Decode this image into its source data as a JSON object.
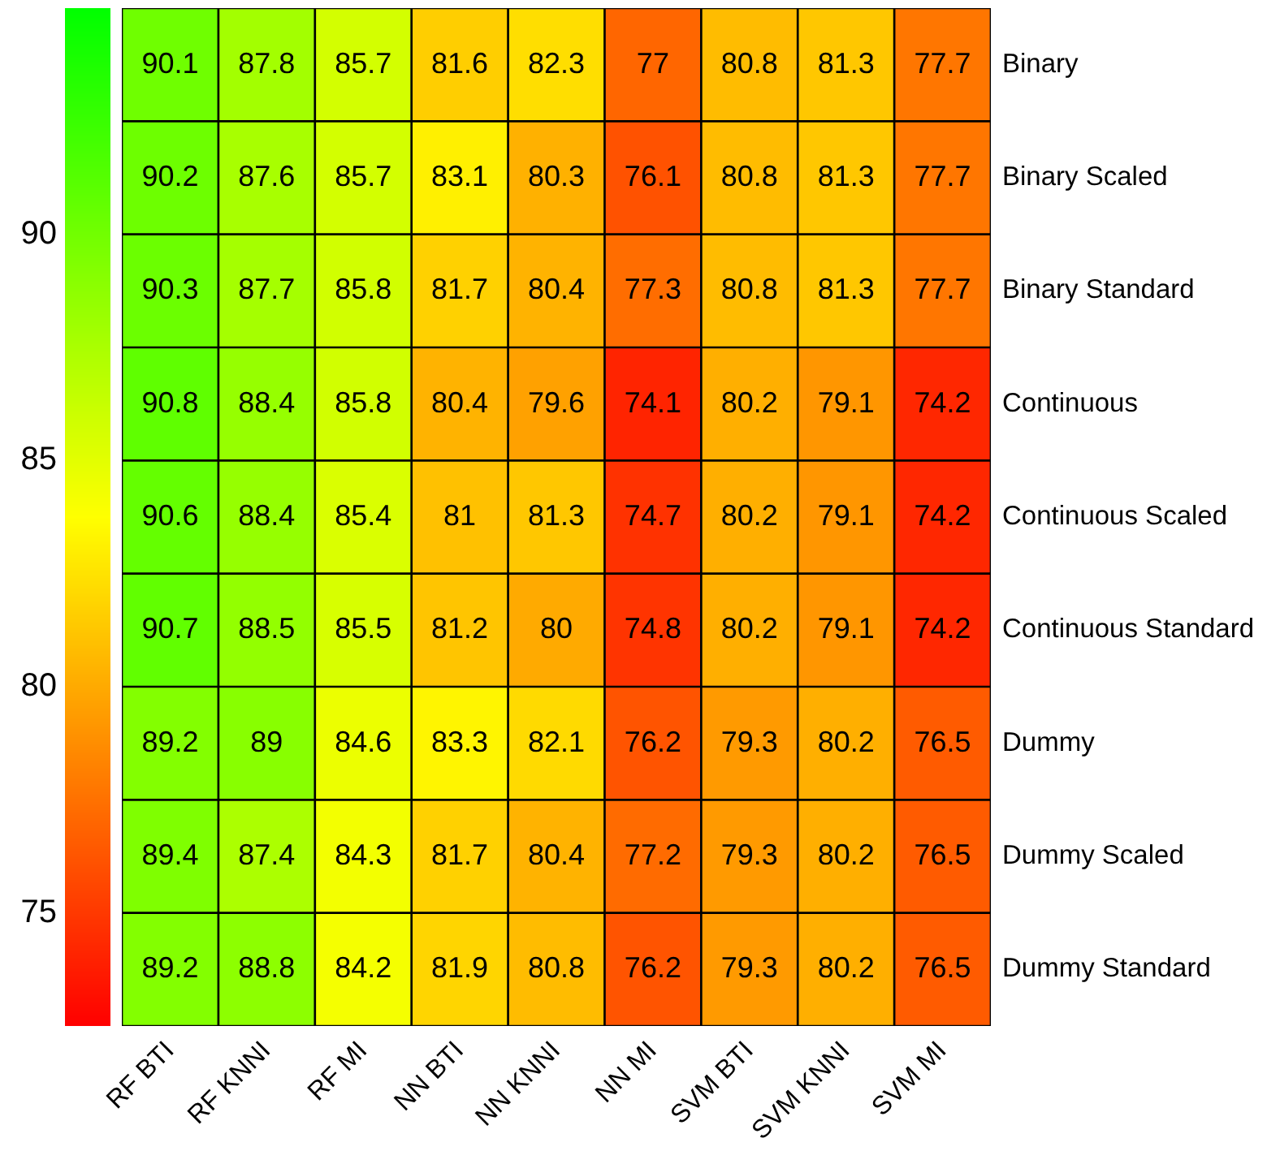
{
  "chart_data": {
    "type": "heatmap",
    "categories": [
      "RF BTI",
      "RF KNNI",
      "RF MI",
      "NN BTI",
      "NN KNNI",
      "NN MI",
      "SVM BTI",
      "SVM KNNI",
      "SVM MI"
    ],
    "y_categories": [
      "Binary",
      "Binary Scaled",
      "Binary Standard",
      "Continuous",
      "Continuous Scaled",
      "Continuous Standard",
      "Dummy",
      "Dummy Scaled",
      "Dummy Standard"
    ],
    "cells": [
      [
        90.1,
        87.8,
        85.7,
        81.6,
        82.3,
        77,
        80.8,
        81.3,
        77.7
      ],
      [
        90.2,
        87.6,
        85.7,
        83.1,
        80.3,
        76.1,
        80.8,
        81.3,
        77.7
      ],
      [
        90.3,
        87.7,
        85.8,
        81.7,
        80.4,
        77.3,
        80.8,
        81.3,
        77.7
      ],
      [
        90.8,
        88.4,
        85.8,
        80.4,
        79.6,
        74.1,
        80.2,
        79.1,
        74.2
      ],
      [
        90.6,
        88.4,
        85.4,
        81,
        81.3,
        74.7,
        80.2,
        79.1,
        74.2
      ],
      [
        90.7,
        88.5,
        85.5,
        81.2,
        80,
        74.8,
        80.2,
        79.1,
        74.2
      ],
      [
        89.2,
        89,
        84.6,
        83.3,
        82.1,
        76.2,
        79.3,
        80.2,
        76.5
      ],
      [
        89.4,
        87.4,
        84.3,
        81.7,
        80.4,
        77.2,
        79.3,
        80.2,
        76.5
      ],
      [
        89.2,
        88.8,
        84.2,
        81.9,
        80.8,
        76.2,
        79.3,
        80.2,
        76.5
      ]
    ],
    "clim": [
      72.5,
      95
    ],
    "cticks": [
      75,
      80,
      85,
      90
    ],
    "data_labels": true
  }
}
